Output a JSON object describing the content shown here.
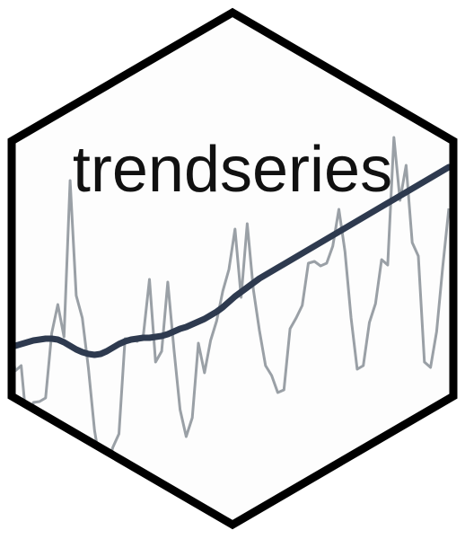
{
  "logo": {
    "title": "trendseries",
    "colors": {
      "background": "#fdfdfd",
      "border": "#000000",
      "raw_series": "#9aa0a6",
      "trend_line": "#2e3a4f"
    },
    "raw_series": [
      0.84,
      0.27,
      0.33,
      -0.4,
      -0.08,
      -0.07,
      -0.03,
      0.69,
      1.01,
      0.65,
      2.39,
      1.11,
      0.86,
      0.3,
      -0.39,
      -0.8,
      -0.8,
      -0.58,
      -0.43,
      0.63,
      0.63,
      0.6,
      0.67,
      1.29,
      0.37,
      0.49,
      1.26,
      0.51,
      -0.16,
      -0.46,
      -0.25,
      0.58,
      0.25,
      0.61,
      0.83,
      1.16,
      1.4,
      1.85,
      1.09,
      1.91,
      1.18,
      0.72,
      0.33,
      0.22,
      0.03,
      0.06,
      0.74,
      0.86,
      1.0,
      1.47,
      1.49,
      1.44,
      1.47,
      1.66,
      2.07,
      1.6,
      0.86,
      0.29,
      0.33,
      0.81,
      1.02,
      1.51,
      1.45,
      2.87,
      2.17,
      2.56,
      1.7,
      1.55,
      0.37,
      0.31,
      0.71,
      1.43,
      2.08
    ],
    "trend_series": [
      0.53,
      0.55,
      0.57,
      0.59,
      0.61,
      0.62,
      0.63,
      0.63,
      0.62,
      0.59,
      0.55,
      0.51,
      0.48,
      0.46,
      0.45,
      0.46,
      0.49,
      0.53,
      0.57,
      0.6,
      0.62,
      0.63,
      0.64,
      0.64,
      0.65,
      0.66,
      0.68,
      0.71,
      0.74,
      0.76,
      0.79,
      0.82,
      0.85,
      0.89,
      0.93,
      0.98,
      1.04,
      1.1,
      1.15,
      1.2,
      1.25,
      1.3,
      1.34,
      1.38,
      1.42,
      1.46,
      1.5,
      1.54,
      1.58,
      1.62,
      1.66,
      1.7,
      1.74,
      1.78,
      1.82,
      1.86,
      1.9,
      1.94,
      1.98,
      2.02,
      2.06,
      2.1,
      2.14,
      2.18,
      2.22,
      2.26,
      2.3,
      2.34,
      2.38,
      2.42,
      2.46,
      2.5,
      2.54
    ]
  }
}
